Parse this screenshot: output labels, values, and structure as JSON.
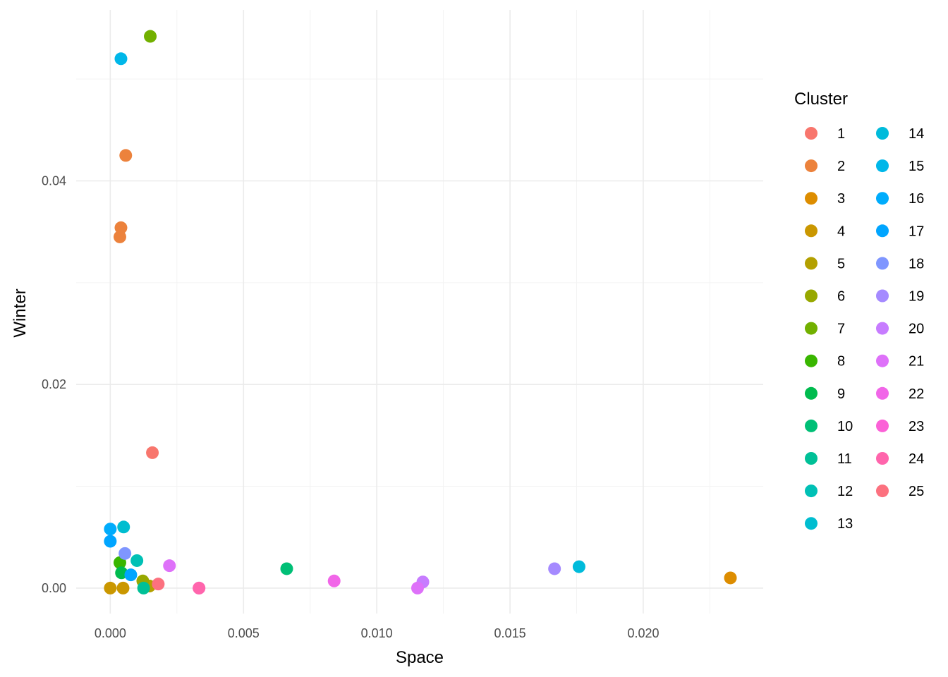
{
  "chart_data": {
    "type": "scatter",
    "title": "",
    "xlabel": "Space",
    "ylabel": "Winter",
    "xlim": [
      -0.00128,
      0.0245
    ],
    "ylim": [
      -0.0025,
      0.0568
    ],
    "x_ticks": [
      0.0,
      0.005,
      0.01,
      0.015,
      0.02
    ],
    "x_tick_labels": [
      "0.000",
      "0.005",
      "0.010",
      "0.015",
      "0.020"
    ],
    "x_minor_ticks": [
      0.0025,
      0.0075,
      0.0125,
      0.0175,
      0.0225
    ],
    "y_ticks": [
      0.0,
      0.02,
      0.04
    ],
    "y_tick_labels": [
      "0.00",
      "0.02",
      "0.04"
    ],
    "y_minor_ticks": [
      0.01,
      0.03,
      0.05
    ],
    "grid": true,
    "legend": {
      "title": "Cluster",
      "placement": "right",
      "columns": 2,
      "entries": [
        "1",
        "2",
        "3",
        "4",
        "5",
        "6",
        "7",
        "8",
        "9",
        "10",
        "11",
        "12",
        "13",
        "14",
        "15",
        "16",
        "17",
        "18",
        "19",
        "20",
        "21",
        "22",
        "23",
        "24",
        "25"
      ]
    },
    "series": [
      {
        "name": "1",
        "color": "#F8766D",
        "points": [
          [
            0.00158,
            0.0133
          ]
        ]
      },
      {
        "name": "2",
        "color": "#EC823C",
        "points": [
          [
            0.00058,
            0.0425
          ],
          [
            0.0004,
            0.0354
          ],
          [
            0.00036,
            0.0345
          ]
        ]
      },
      {
        "name": "3",
        "color": "#DD8D00",
        "points": [
          [
            0.02327,
            0.001
          ]
        ]
      },
      {
        "name": "4",
        "color": "#CA9700",
        "points": [
          [
            0.0,
            0.0
          ],
          [
            0.00048,
            0.0
          ]
        ]
      },
      {
        "name": "5",
        "color": "#B3A000",
        "points": [
          [
            0.00147,
            0.0002
          ]
        ]
      },
      {
        "name": "6",
        "color": "#97A800",
        "points": [
          [
            0.00122,
            0.0007
          ]
        ]
      },
      {
        "name": "7",
        "color": "#72B000",
        "points": [
          [
            0.0015,
            0.0542
          ]
        ]
      },
      {
        "name": "8",
        "color": "#39B600",
        "points": [
          [
            0.00036,
            0.0025
          ]
        ]
      },
      {
        "name": "9",
        "color": "#00BB4E",
        "points": [
          [
            0.00042,
            0.0015
          ]
        ]
      },
      {
        "name": "10",
        "color": "#00BF76",
        "points": [
          [
            0.00662,
            0.0019
          ]
        ]
      },
      {
        "name": "11",
        "color": "#00C097",
        "points": [
          [
            0.00125,
            0.0
          ]
        ]
      },
      {
        "name": "12",
        "color": "#00C0B5",
        "points": [
          [
            0.001,
            0.0027
          ]
        ]
      },
      {
        "name": "13",
        "color": "#00BDD0",
        "points": [
          [
            0.0005,
            0.006
          ]
        ]
      },
      {
        "name": "14",
        "color": "#00BBDB",
        "points": [
          [
            0.01759,
            0.0021
          ]
        ]
      },
      {
        "name": "15",
        "color": "#00B7E9",
        "points": [
          [
            0.0004,
            0.052
          ]
        ]
      },
      {
        "name": "16",
        "color": "#00ACFC",
        "points": [
          [
            0.0,
            0.0058
          ]
        ]
      },
      {
        "name": "17",
        "color": "#00A5FF",
        "points": [
          [
            0.0,
            0.0046
          ],
          [
            0.00077,
            0.0013
          ]
        ]
      },
      {
        "name": "18",
        "color": "#7F96FF",
        "points": [
          [
            0.00055,
            0.0034
          ]
        ]
      },
      {
        "name": "19",
        "color": "#A58AFF",
        "points": [
          [
            0.01667,
            0.0019
          ]
        ]
      },
      {
        "name": "20",
        "color": "#C77CFF",
        "points": [
          [
            0.01173,
            0.0006
          ]
        ]
      },
      {
        "name": "21",
        "color": "#DE71F9",
        "points": [
          [
            0.00222,
            0.0022
          ],
          [
            0.01153,
            0.0
          ]
        ]
      },
      {
        "name": "22",
        "color": "#F166E8",
        "points": [
          [
            0.0084,
            0.0007
          ]
        ]
      },
      {
        "name": "23",
        "color": "#FB61D7",
        "points": [
          [
            0.00333,
            0.0
          ]
        ]
      },
      {
        "name": "24",
        "color": "#FF65AC",
        "points": [
          [
            0.00333,
            0.0
          ]
        ]
      },
      {
        "name": "25",
        "color": "#FC717F",
        "points": [
          [
            0.0018,
            0.0004
          ]
        ]
      }
    ]
  }
}
